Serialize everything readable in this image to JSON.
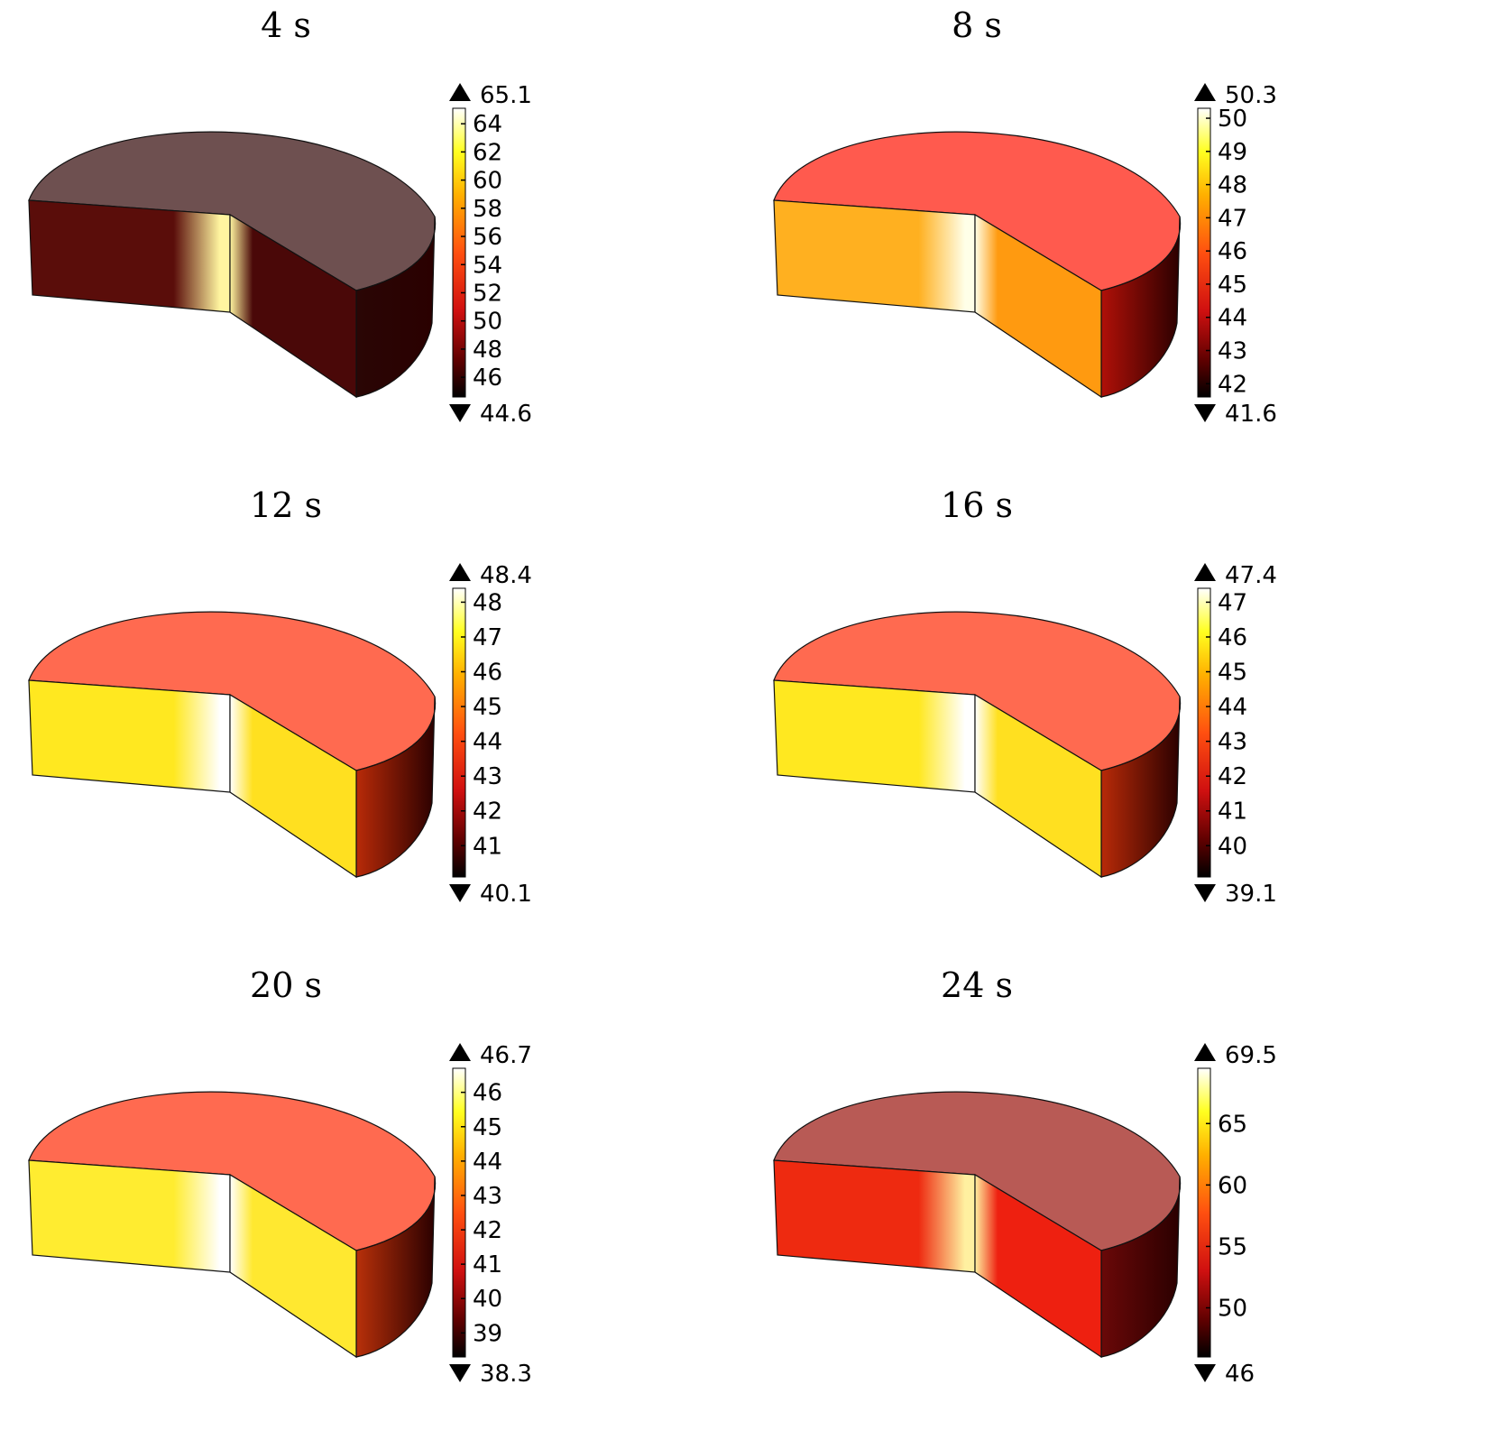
{
  "panels": [
    {
      "title": "4 s",
      "max_label": "65.1",
      "min_label": "44.6",
      "ticks": [
        "64",
        "62",
        "60",
        "58",
        "56",
        "54",
        "52",
        "50",
        "48",
        "46"
      ],
      "tick_values": [
        64,
        62,
        60,
        58,
        56,
        54,
        52,
        50,
        48,
        46
      ],
      "min": 44.6,
      "max": 65.1,
      "colors": {
        "top": "#6e5050",
        "left": "#5a0d0a",
        "cut": "#4a0808",
        "outer": "#2a0605",
        "hot": "#fff5a0"
      }
    },
    {
      "title": "8 s",
      "max_label": "50.3",
      "min_label": "41.6",
      "ticks": [
        "50",
        "49",
        "48",
        "47",
        "46",
        "45",
        "44",
        "43",
        "42"
      ],
      "tick_values": [
        50,
        49,
        48,
        47,
        46,
        45,
        44,
        43,
        42
      ],
      "min": 41.6,
      "max": 50.3,
      "colors": {
        "top": "#ff5a4e",
        "left": "#ffb020",
        "cut": "#ff9a10",
        "outer": "#b01008",
        "hot": "#ffffe8"
      }
    },
    {
      "title": "12 s",
      "max_label": "48.4",
      "min_label": "40.1",
      "ticks": [
        "48",
        "47",
        "46",
        "45",
        "44",
        "43",
        "42",
        "41"
      ],
      "tick_values": [
        48,
        47,
        46,
        45,
        44,
        43,
        42,
        41
      ],
      "min": 40.1,
      "max": 48.4,
      "colors": {
        "top": "#ff6a50",
        "left": "#ffe820",
        "cut": "#ffe020",
        "outer": "#b82a08",
        "hot": "#ffffff"
      }
    },
    {
      "title": "16 s",
      "max_label": "47.4",
      "min_label": "39.1",
      "ticks": [
        "47",
        "46",
        "45",
        "44",
        "43",
        "42",
        "41",
        "40"
      ],
      "tick_values": [
        47,
        46,
        45,
        44,
        43,
        42,
        41,
        40
      ],
      "min": 39.1,
      "max": 47.4,
      "colors": {
        "top": "#ff6a50",
        "left": "#ffe820",
        "cut": "#ffe020",
        "outer": "#b82a08",
        "hot": "#ffffff"
      }
    },
    {
      "title": "20 s",
      "max_label": "46.7",
      "min_label": "38.3",
      "ticks": [
        "46",
        "45",
        "44",
        "43",
        "42",
        "41",
        "40",
        "39"
      ],
      "tick_values": [
        46,
        45,
        44,
        43,
        42,
        41,
        40,
        39
      ],
      "min": 38.3,
      "max": 46.7,
      "colors": {
        "top": "#ff6a50",
        "left": "#ffec30",
        "cut": "#ffe830",
        "outer": "#b8300a",
        "hot": "#ffffff"
      }
    },
    {
      "title": "24 s",
      "max_label": "69.5",
      "min_label": "46",
      "ticks": [
        "65",
        "60",
        "55",
        "50"
      ],
      "tick_values": [
        65,
        60,
        55,
        50
      ],
      "min": 46,
      "max": 69.5,
      "colors": {
        "top": "#b85a55",
        "left": "#ee2a10",
        "cut": "#ee2010",
        "outer": "#6a0808",
        "hot": "#fff0a0"
      }
    }
  ]
}
